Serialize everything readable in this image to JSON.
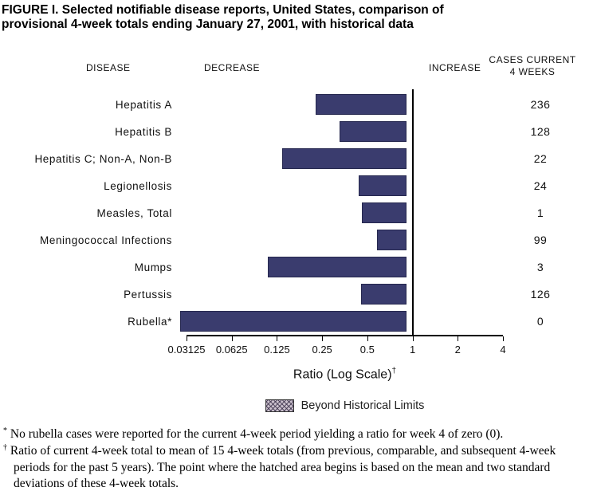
{
  "title": "FIGURE I. Selected notifiable disease reports, United States, comparison of provisional 4-week totals ending January 27, 2001, with historical data",
  "headers": {
    "disease": "DISEASE",
    "decrease": "DECREASE",
    "increase": "INCREASE",
    "cases_line1": "CASES CURRENT",
    "cases_line2": "4 WEEKS"
  },
  "chart_data": {
    "type": "bar",
    "orientation": "horizontal",
    "scale": "log",
    "baseline": 1,
    "x_ticks": [
      0.03125,
      0.0625,
      0.125,
      0.25,
      0.5,
      1,
      2,
      4
    ],
    "x_tick_labels": [
      "0.03125",
      "0.0625",
      "0.125",
      "0.25",
      "0.5",
      "1",
      "2",
      "4"
    ],
    "xlabel": "Ratio (Log Scale)",
    "xlabel_marker": "†",
    "bar_color": "#3a3c6e",
    "bars": [
      {
        "label": "Hepatitis A",
        "ratio": 0.25,
        "cases": "236",
        "beyond_limits": false
      },
      {
        "label": "Hepatitis B",
        "ratio": 0.36,
        "cases": "128",
        "beyond_limits": false
      },
      {
        "label": "Hepatitis C; Non-A, Non-B",
        "ratio": 0.15,
        "cases": "22",
        "beyond_limits": false
      },
      {
        "label": "Legionellosis",
        "ratio": 0.48,
        "cases": "24",
        "beyond_limits": false
      },
      {
        "label": "Measles, Total",
        "ratio": 0.51,
        "cases": "1",
        "beyond_limits": false
      },
      {
        "label": "Meningococcal Infections",
        "ratio": 0.64,
        "cases": "99",
        "beyond_limits": false
      },
      {
        "label": "Mumps",
        "ratio": 0.12,
        "cases": "3",
        "beyond_limits": false
      },
      {
        "label": "Pertussis",
        "ratio": 0.5,
        "cases": "126",
        "beyond_limits": false
      },
      {
        "label": "Rubella*",
        "ratio": 0.03125,
        "cases": "0",
        "beyond_limits": true
      }
    ],
    "legend": {
      "label": "Beyond Historical Limits",
      "pattern": "hatched"
    }
  },
  "footnotes": [
    {
      "marker": "*",
      "text": "No rubella cases were reported for the current 4-week period yielding a ratio for week 4 of zero (0)."
    },
    {
      "marker": "†",
      "text": "Ratio of current 4-week total to mean of 15 4-week totals (from previous, comparable, and subsequent 4-week periods for the past 5 years). The point where the hatched area begins is based on the mean and two standard deviations of these 4-week totals."
    }
  ]
}
